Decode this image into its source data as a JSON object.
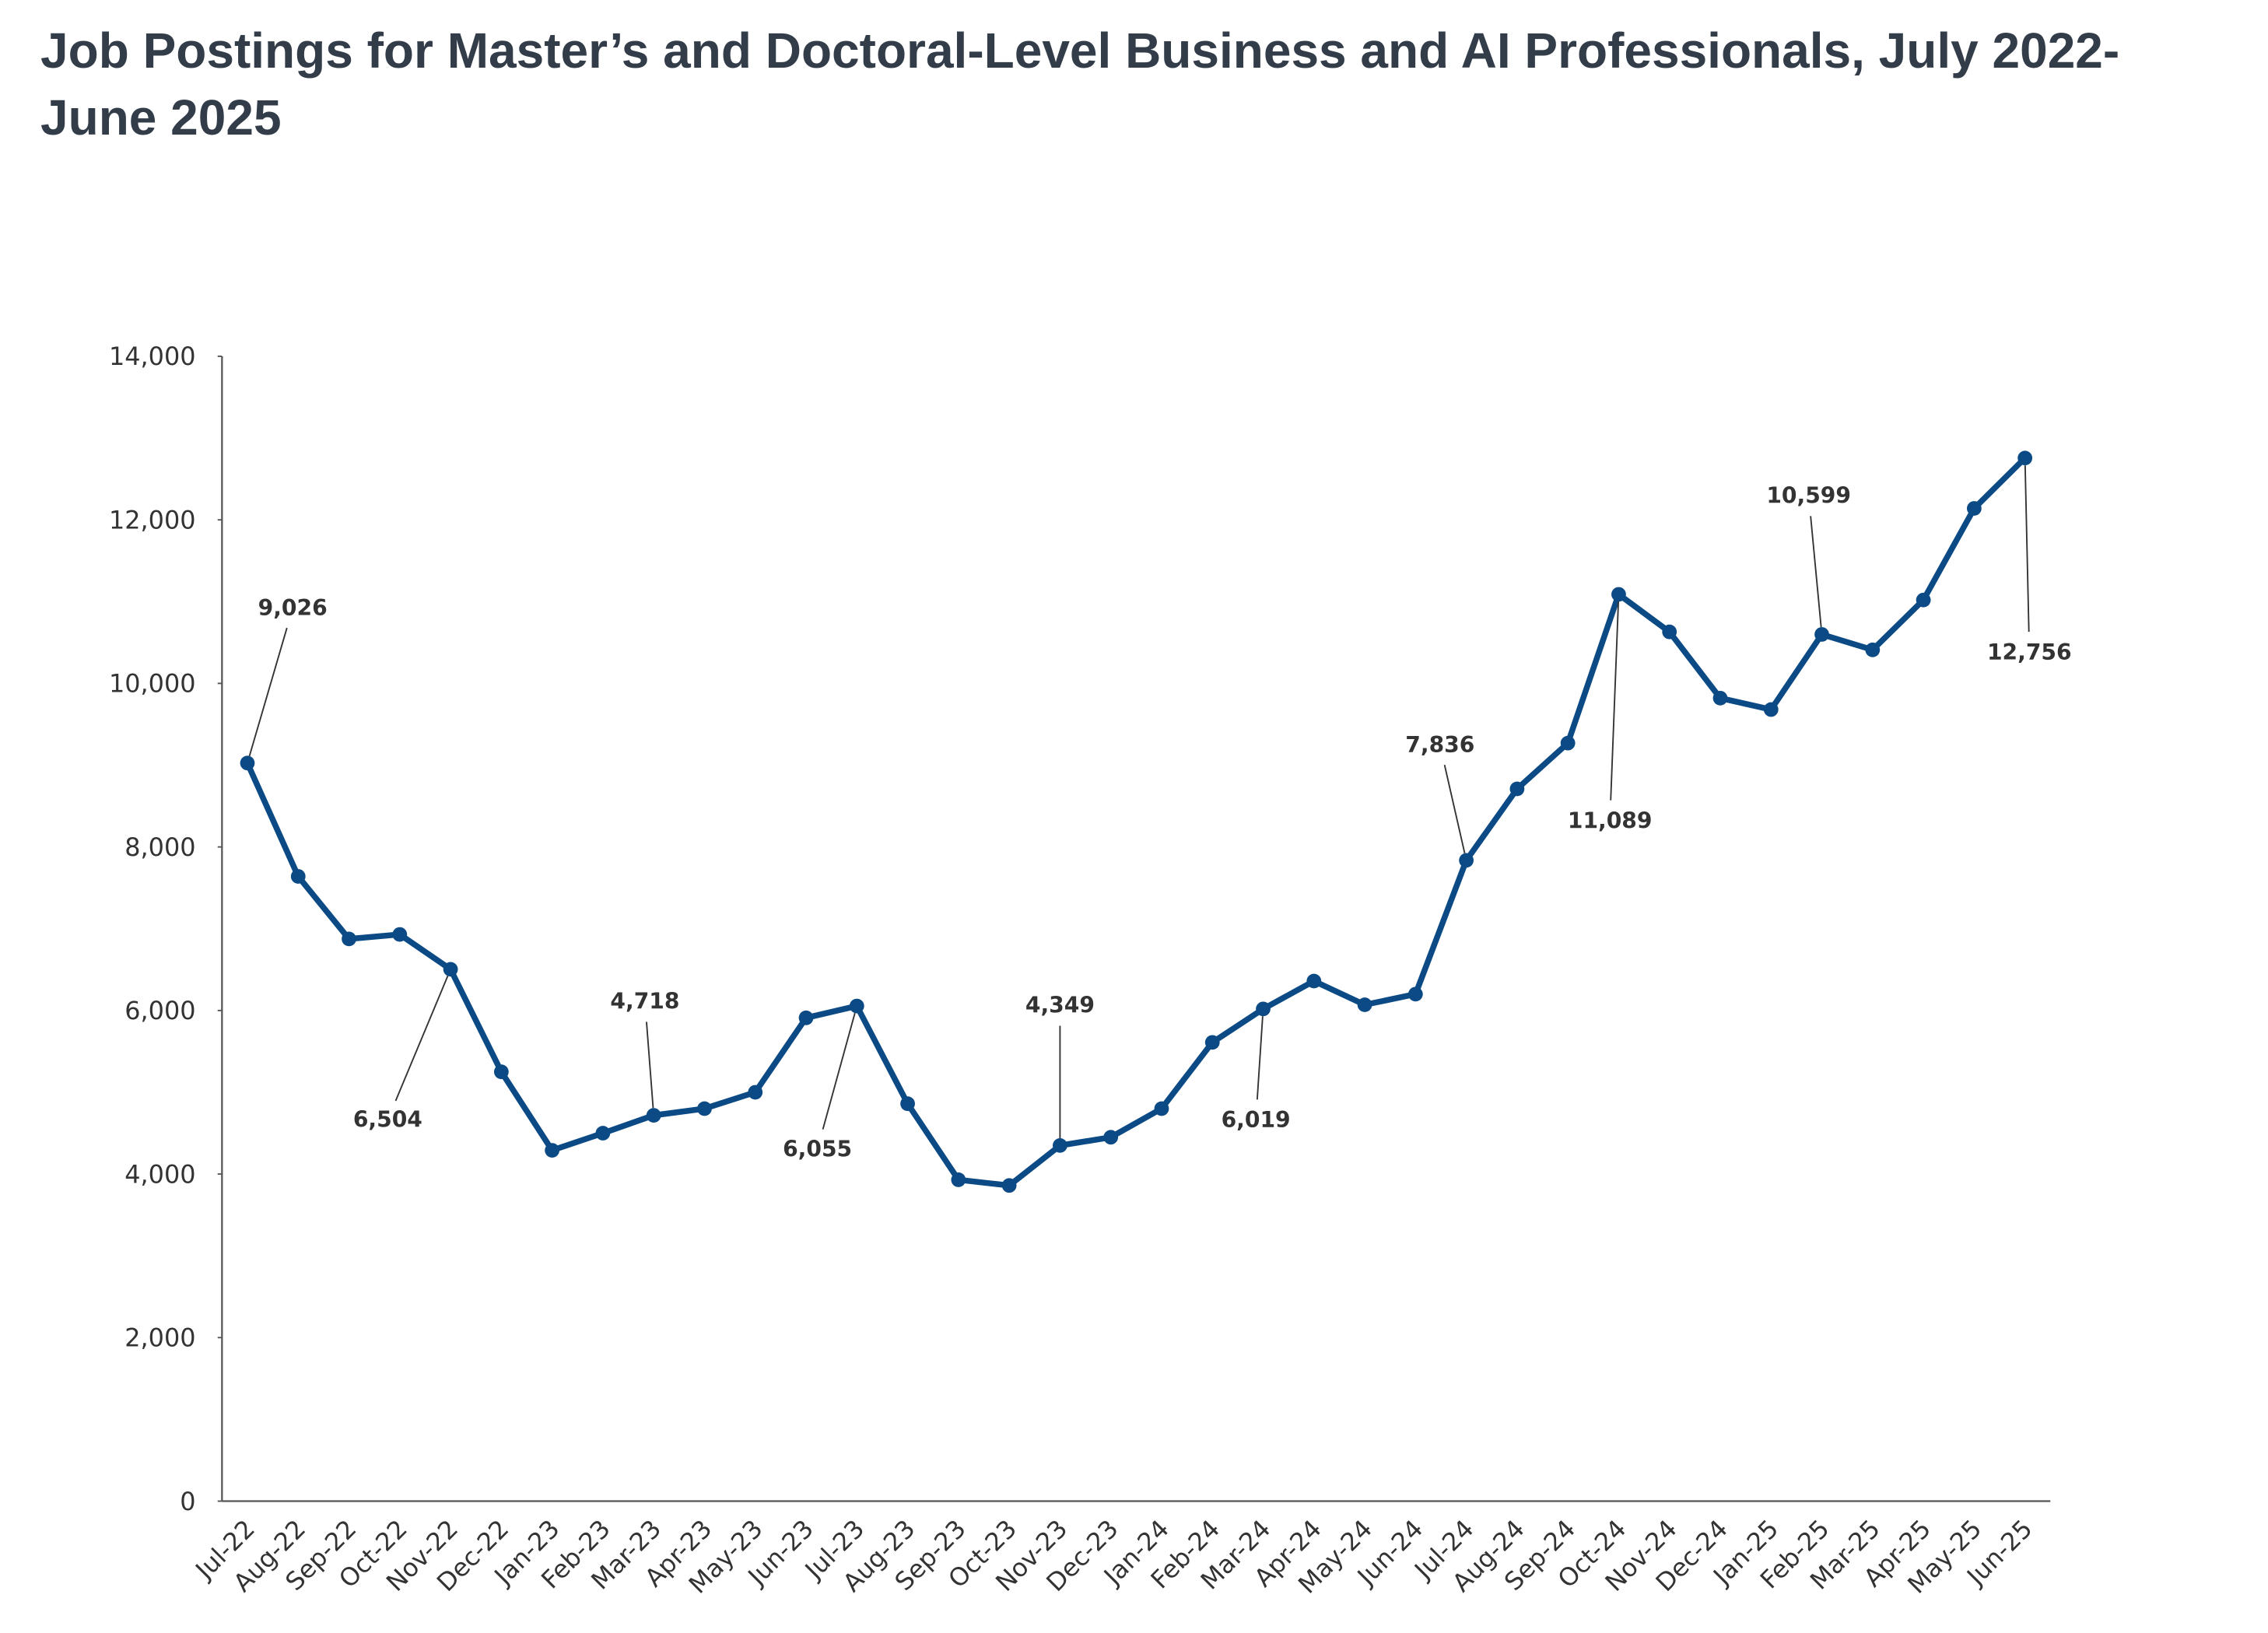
{
  "chart_data": {
    "type": "line",
    "title": "Job Postings for Master’s and Doctoral-Level Business and AI Professionals, July 2022-June 2025",
    "categories": [
      "Jul-22",
      "Aug-22",
      "Sep-22",
      "Oct-22",
      "Nov-22",
      "Dec-22",
      "Jan-23",
      "Feb-23",
      "Mar-23",
      "Apr-23",
      "May-23",
      "Jun-23",
      "Jul-23",
      "Aug-23",
      "Sep-23",
      "Oct-23",
      "Nov-23",
      "Dec-23",
      "Jan-24",
      "Feb-24",
      "Mar-24",
      "Apr-24",
      "May-24",
      "Jun-24",
      "Jul-24",
      "Aug-24",
      "Sep-24",
      "Oct-24",
      "Nov-24",
      "Dec-24",
      "Jan-25",
      "Feb-25",
      "Mar-25",
      "Apr-25",
      "May-25",
      "Jun-25"
    ],
    "values": [
      9026,
      7640,
      6875,
      6930,
      6504,
      5250,
      4290,
      4500,
      4718,
      4800,
      5000,
      5910,
      6055,
      4860,
      3930,
      3860,
      4349,
      4450,
      4800,
      5610,
      6019,
      6360,
      6070,
      6200,
      7836,
      8710,
      9270,
      11089,
      10630,
      9820,
      9680,
      10599,
      10410,
      11020,
      12140,
      12756
    ],
    "value_labels": [
      "9,026",
      null,
      null,
      null,
      "6,504",
      null,
      null,
      null,
      "4,718",
      null,
      null,
      null,
      "6,055",
      null,
      null,
      null,
      "4,349",
      null,
      null,
      null,
      "6,019",
      null,
      null,
      null,
      "7,836",
      null,
      null,
      "11,089",
      null,
      null,
      null,
      "10,599",
      null,
      null,
      null,
      "12,756"
    ],
    "color": "#0b4a85",
    "ylim": [
      0,
      14000
    ],
    "yticks": [
      0,
      {
        "value": 2000,
        "label": "2,000"
      },
      {
        "value": 4000,
        "label": "4,000"
      },
      {
        "value": 6000,
        "label": "6,000"
      },
      {
        "value": 8000,
        "label": "8,000"
      },
      {
        "value": 10000,
        "label": "10,000"
      },
      {
        "value": 12000,
        "label": "12,000"
      },
      {
        "value": 14000,
        "label": "14,000"
      }
    ],
    "grid": false
  }
}
